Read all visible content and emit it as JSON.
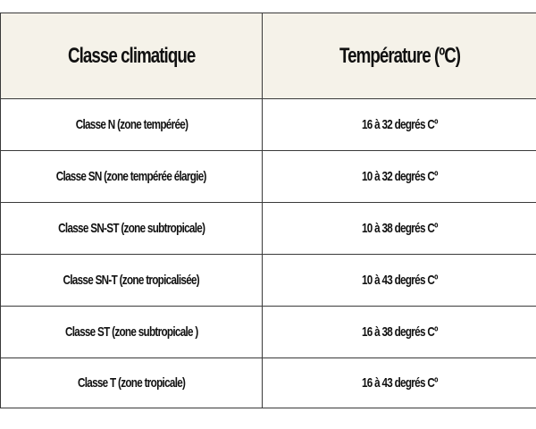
{
  "table": {
    "headers": [
      "Classe climatique",
      "Température (ºC)"
    ],
    "rows": [
      [
        "Classe N (zone tempérée)",
        "16 à 32 degrés Cº"
      ],
      [
        "Classe SN (zone tempérée élargie)",
        "10 à 32 degrés Cº"
      ],
      [
        "Classe SN-ST (zone subtropicale)",
        "10 à 38 degrés Cº"
      ],
      [
        "Classe SN-T (zone tropicalisée)",
        "10 à 43 degrés Cº"
      ],
      [
        "Classe ST (zone subtropicale )",
        "16 à 38 degrés Cº"
      ],
      [
        "Classe T (zone tropicale)",
        "16 à 43 degrés Cº"
      ]
    ]
  },
  "colors": {
    "header_background": "#f5f2e9",
    "border": "#3a3a3a",
    "text": "#111111"
  }
}
